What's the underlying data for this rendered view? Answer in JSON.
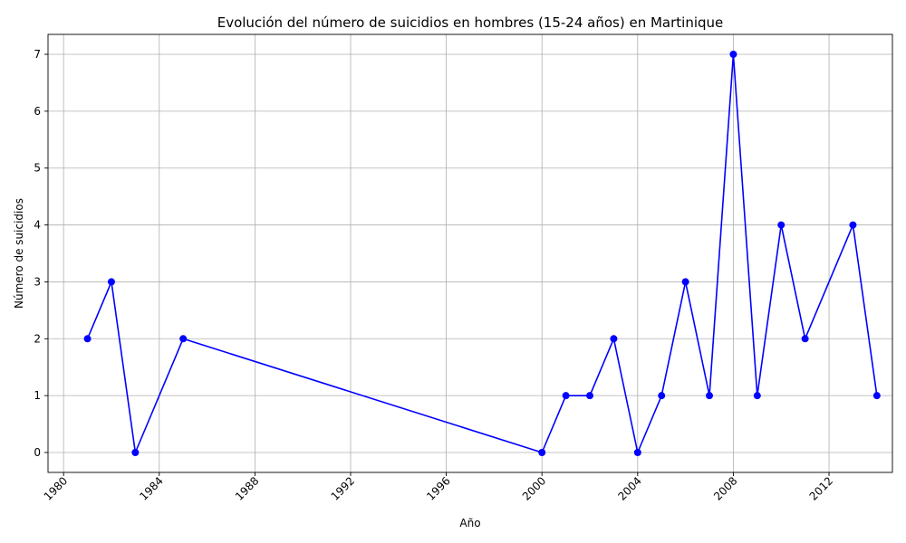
{
  "chart_data": {
    "type": "line",
    "title": "Evolución del número de suicidios en hombres (15-24 años) en Martinique",
    "xlabel": "Año",
    "ylabel": "Número de suicidios",
    "x_ticks": [
      1980,
      1984,
      1988,
      1992,
      1996,
      2000,
      2004,
      2008,
      2012
    ],
    "y_ticks": [
      0,
      1,
      2,
      3,
      4,
      5,
      6,
      7
    ],
    "xlim": [
      1979.35,
      2014.65
    ],
    "ylim": [
      -0.35,
      7.35
    ],
    "grid": true,
    "line_color": "#0000ff",
    "marker": "circle",
    "series": [
      {
        "x": [
          1981,
          1982,
          1983,
          1985,
          2000,
          2001,
          2002,
          2003,
          2004,
          2005,
          2006,
          2007,
          2008,
          2009,
          2010,
          2011,
          2013,
          2014
        ],
        "y": [
          2,
          3,
          0,
          2,
          0,
          1,
          1,
          2,
          0,
          1,
          3,
          1,
          7,
          1,
          4,
          2,
          4,
          1
        ]
      }
    ]
  }
}
